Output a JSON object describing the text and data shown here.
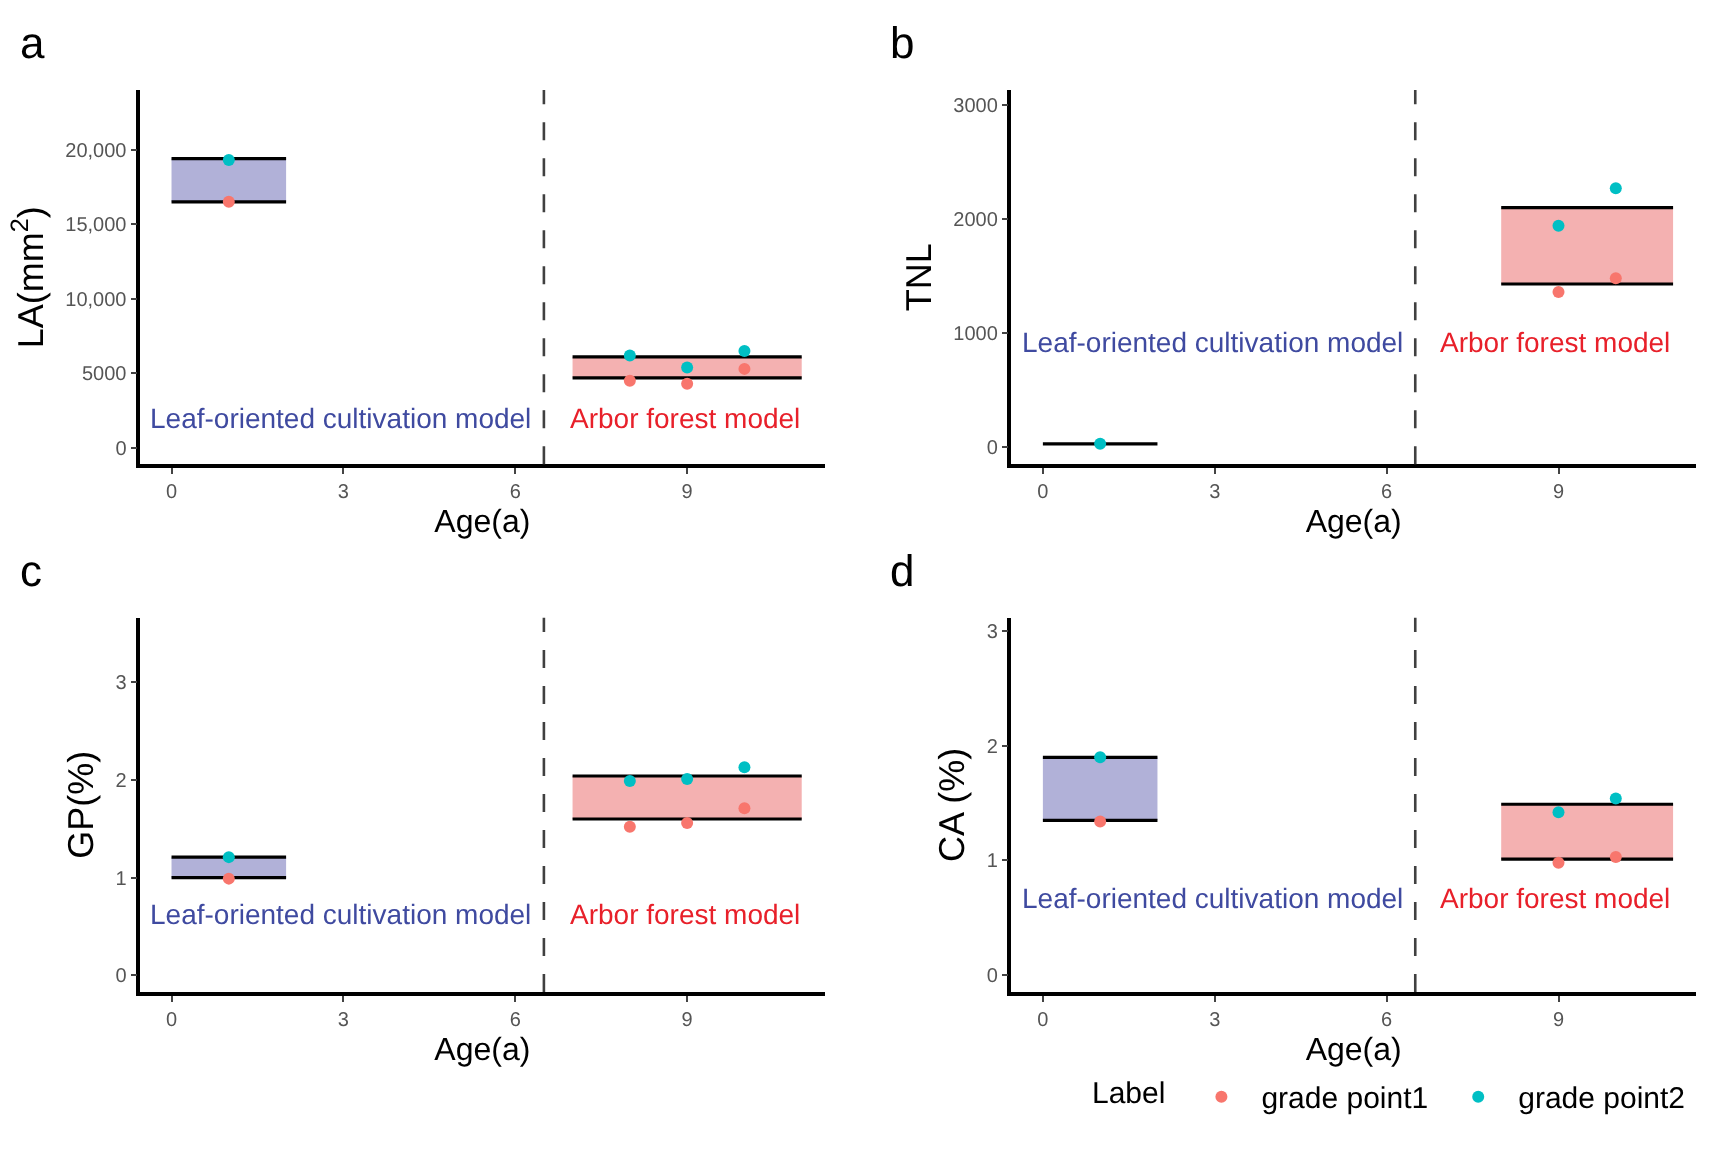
{
  "chart_data": [
    {
      "type": "scatter",
      "title": "a",
      "xlabel": "Age(a)",
      "ylabel": "LA(mm$^{2}$)",
      "xlim": [
        -0.55,
        11.4
      ],
      "xticks": [
        0,
        3,
        6,
        9
      ],
      "ylim": [
        -1100,
        24000
      ],
      "yticks": [
        0,
        5000,
        {
          "value": 10000,
          "label": "10,000"
        },
        {
          "value": 15000,
          "label": "15,000"
        },
        {
          "value": 20000,
          "label": "20,000"
        }
      ],
      "grid": false,
      "legend": "bottom",
      "legend_title": "Label",
      "series": [
        {
          "type": "line",
          "color": "#000000",
          "x": [
            0,
            2
          ],
          "values": [
            19400,
            19400
          ],
          "lower": [
            16500,
            16500
          ],
          "upper": [
            19400,
            19400
          ]
        },
        {
          "type": "line",
          "color": "#000000",
          "x": [
            0,
            2
          ],
          "values": [
            16500,
            16500
          ]
        },
        {
          "type": "line",
          "color": "#000000",
          "x": [
            7,
            11
          ],
          "values": [
            6100,
            6100
          ],
          "lower": [
            4700,
            4700
          ],
          "upper": [
            6100,
            6100
          ]
        },
        {
          "type": "line",
          "color": "#000000",
          "x": [
            7,
            11
          ],
          "values": [
            4700,
            4700
          ]
        },
        {
          "name": "grade point1",
          "color": "#f8766d",
          "marker": "circle",
          "x": [
            1,
            8,
            9,
            10
          ],
          "values": [
            16500,
            4500,
            4300,
            5300
          ]
        },
        {
          "name": "grade point2",
          "color": "#00bfc4",
          "marker": "circle",
          "x": [
            1,
            8,
            9,
            10
          ],
          "values": [
            19300,
            6200,
            5400,
            6500
          ]
        }
      ],
      "ref_lines": [
        {
          "axis": "x",
          "value": 6.5,
          "line_style": "dashed",
          "color": "#404040"
        }
      ],
      "annotations": [
        "Leaf-oriented cultivation model",
        "Arbor forest model"
      ]
    },
    {
      "type": "scatter",
      "title": "b",
      "xlabel": "Age(a)",
      "ylabel": "TNL",
      "xlim": [
        -0.55,
        11.4
      ],
      "xticks": [
        0,
        3,
        6,
        9
      ],
      "ylim": [
        -150,
        3130
      ],
      "yticks": [
        0,
        1000,
        2000,
        3000
      ],
      "grid": false,
      "series": [
        {
          "type": "line",
          "color": "#000000",
          "x": [
            0,
            2
          ],
          "values": [
            30,
            30
          ]
        },
        {
          "type": "line",
          "color": "#000000",
          "x": [
            8,
            11
          ],
          "values": [
            2100,
            2100
          ],
          "lower": [
            1430,
            1430
          ],
          "upper": [
            2100,
            2100
          ]
        },
        {
          "type": "line",
          "color": "#000000",
          "x": [
            8,
            11
          ],
          "values": [
            1430,
            1430
          ]
        },
        {
          "name": "grade point1",
          "color": "#f8766d",
          "marker": "circle",
          "x": [
            9,
            10
          ],
          "values": [
            1360,
            1480
          ]
        },
        {
          "name": "grade point2",
          "color": "#00bfc4",
          "marker": "circle",
          "x": [
            1,
            9,
            10
          ],
          "values": [
            30,
            1940,
            2270
          ]
        }
      ],
      "ref_lines": [
        {
          "axis": "x",
          "value": 6.5,
          "line_style": "dashed",
          "color": "#404040"
        }
      ],
      "annotations": [
        "Leaf-oriented cultivation model",
        "Arbor forest model"
      ]
    },
    {
      "type": "scatter",
      "title": "c",
      "xlabel": "Age(a)",
      "ylabel": "GP(%)",
      "xlim": [
        -0.55,
        11.4
      ],
      "xticks": [
        0,
        3,
        6,
        9
      ],
      "ylim": [
        -0.17,
        3.66
      ],
      "yticks": [
        0,
        1,
        2,
        3
      ],
      "grid": false,
      "series": [
        {
          "type": "line",
          "color": "#000000",
          "x": [
            0,
            2
          ],
          "values": [
            1.21,
            1.21
          ],
          "lower": [
            1.0,
            1.0
          ],
          "upper": [
            1.21,
            1.21
          ]
        },
        {
          "type": "line",
          "color": "#000000",
          "x": [
            0,
            2
          ],
          "values": [
            1.0,
            1.0
          ]
        },
        {
          "type": "line",
          "color": "#000000",
          "x": [
            7,
            11
          ],
          "values": [
            2.04,
            2.04
          ],
          "lower": [
            1.6,
            1.6
          ],
          "upper": [
            2.04,
            2.04
          ]
        },
        {
          "type": "line",
          "color": "#000000",
          "x": [
            7,
            11
          ],
          "values": [
            1.6,
            1.6
          ]
        },
        {
          "name": "grade point1",
          "color": "#f8766d",
          "marker": "circle",
          "x": [
            1,
            8,
            9,
            10
          ],
          "values": [
            0.99,
            1.52,
            1.56,
            1.71
          ]
        },
        {
          "name": "grade point2",
          "color": "#00bfc4",
          "marker": "circle",
          "x": [
            1,
            8,
            9,
            10
          ],
          "values": [
            1.21,
            1.99,
            2.01,
            2.13
          ]
        }
      ],
      "ref_lines": [
        {
          "axis": "x",
          "value": 6.5,
          "line_style": "dashed",
          "color": "#404040"
        }
      ],
      "annotations": [
        "Leaf-oriented cultivation model",
        "Arbor forest model"
      ]
    },
    {
      "type": "scatter",
      "title": "d",
      "xlabel": "Age(a)",
      "ylabel": "CA (%)",
      "xlim": [
        -0.55,
        11.4
      ],
      "xticks": [
        0,
        3,
        6,
        9
      ],
      "ylim": [
        -0.15,
        3.12
      ],
      "yticks": [
        0,
        1,
        2,
        3
      ],
      "grid": false,
      "series": [
        {
          "type": "line",
          "color": "#000000",
          "x": [
            0,
            2
          ],
          "values": [
            1.9,
            1.9
          ],
          "lower": [
            1.35,
            1.35
          ],
          "upper": [
            1.9,
            1.9
          ]
        },
        {
          "type": "line",
          "color": "#000000",
          "x": [
            0,
            2
          ],
          "values": [
            1.35,
            1.35
          ]
        },
        {
          "type": "line",
          "color": "#000000",
          "x": [
            8,
            11
          ],
          "values": [
            1.49,
            1.49
          ],
          "lower": [
            1.01,
            1.01
          ],
          "upper": [
            1.49,
            1.49
          ]
        },
        {
          "type": "line",
          "color": "#000000",
          "x": [
            8,
            11
          ],
          "values": [
            1.01,
            1.01
          ]
        },
        {
          "name": "grade point1",
          "color": "#f8766d",
          "marker": "circle",
          "x": [
            1,
            9,
            10
          ],
          "values": [
            1.34,
            0.98,
            1.03
          ]
        },
        {
          "name": "grade point2",
          "color": "#00bfc4",
          "marker": "circle",
          "x": [
            1,
            9,
            10
          ],
          "values": [
            1.9,
            1.42,
            1.54
          ]
        }
      ],
      "ref_lines": [
        {
          "axis": "x",
          "value": 6.5,
          "line_style": "dashed",
          "color": "#404040"
        }
      ],
      "annotations": [
        "Leaf-oriented cultivation model",
        "Arbor forest model"
      ]
    }
  ]
}
